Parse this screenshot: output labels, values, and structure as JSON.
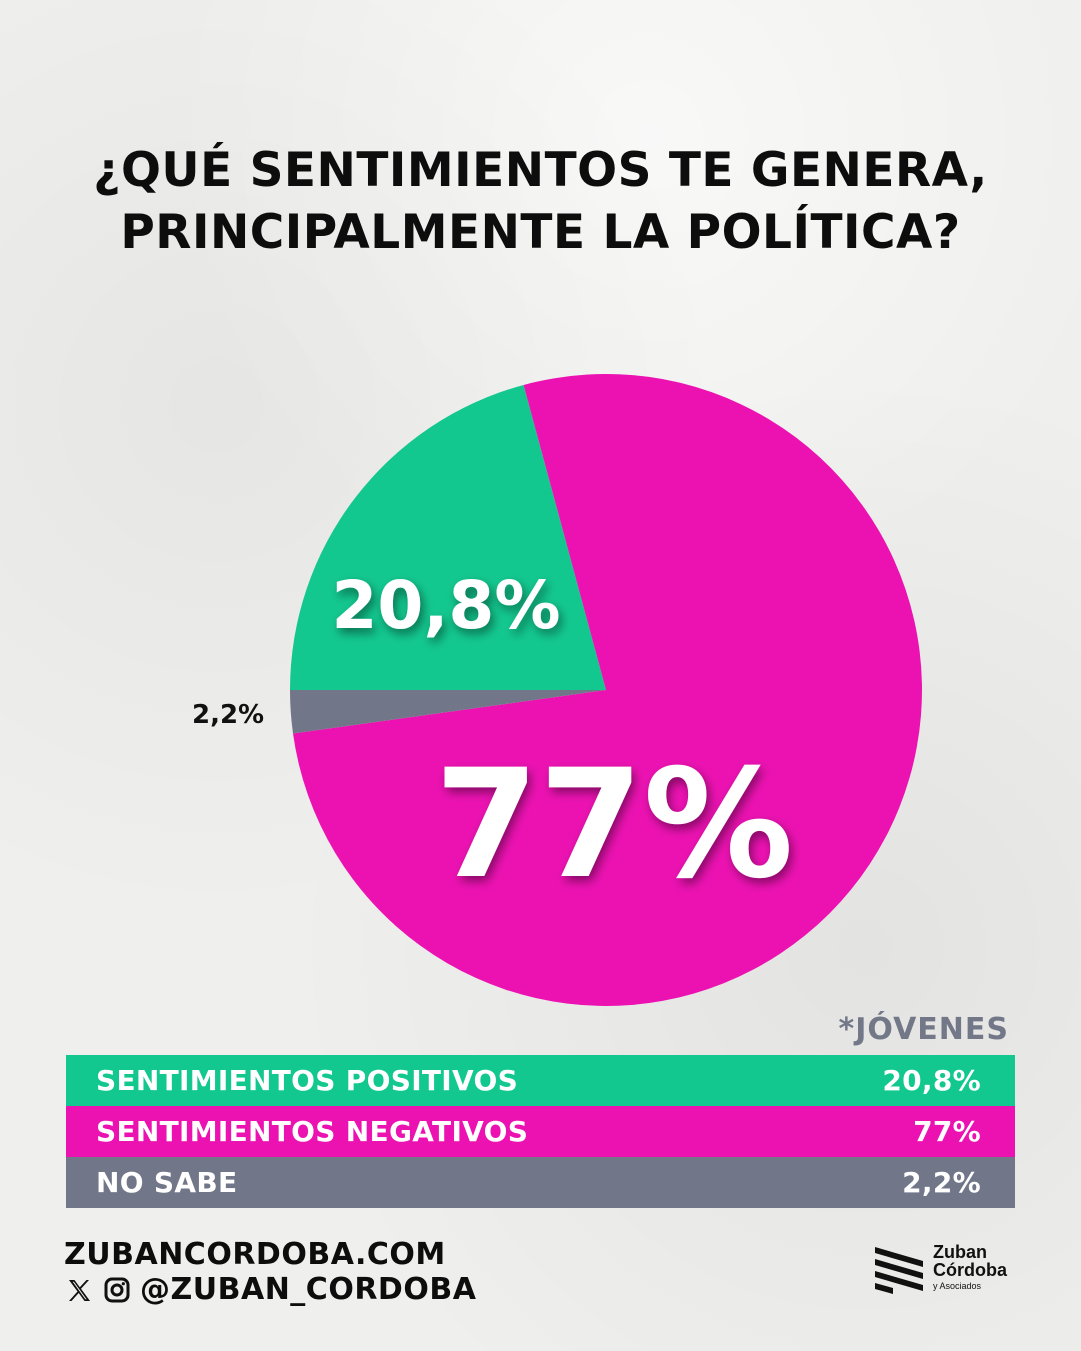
{
  "title": {
    "line1": "¿QUÉ SENTIMIENTOS TE GENERA,",
    "line2": "PRINCIPALMENTE LA POLÍTICA?"
  },
  "chart_data": {
    "type": "pie",
    "categories": [
      "SENTIMIENTOS POSITIVOS",
      "SENTIMIENTOS NEGATIVOS",
      "NO SABE"
    ],
    "values": [
      20.8,
      77,
      2.2
    ],
    "labels": [
      "20,8%",
      "77%",
      "2,2%"
    ],
    "colors": [
      "#13c88f",
      "#ec12b2",
      "#717689"
    ]
  },
  "legend": {
    "tag": "*JÓVENES",
    "rows": [
      {
        "label": "SENTIMIENTOS POSITIVOS",
        "value": "20,8%",
        "color": "#13c88f"
      },
      {
        "label": "SENTIMIENTOS NEGATIVOS",
        "value": "77%",
        "color": "#ec12b2"
      },
      {
        "label": "NO SABE",
        "value": "2,2%",
        "color": "#717689"
      }
    ]
  },
  "footer": {
    "site": "ZUBANCORDOBA.COM",
    "handle": "@ZUBAN_CORDOBA",
    "icons": [
      "x-icon",
      "instagram-icon"
    ]
  },
  "logo": {
    "line1": "Zuban",
    "line2": "Córdoba",
    "line3": "y Asociados"
  }
}
